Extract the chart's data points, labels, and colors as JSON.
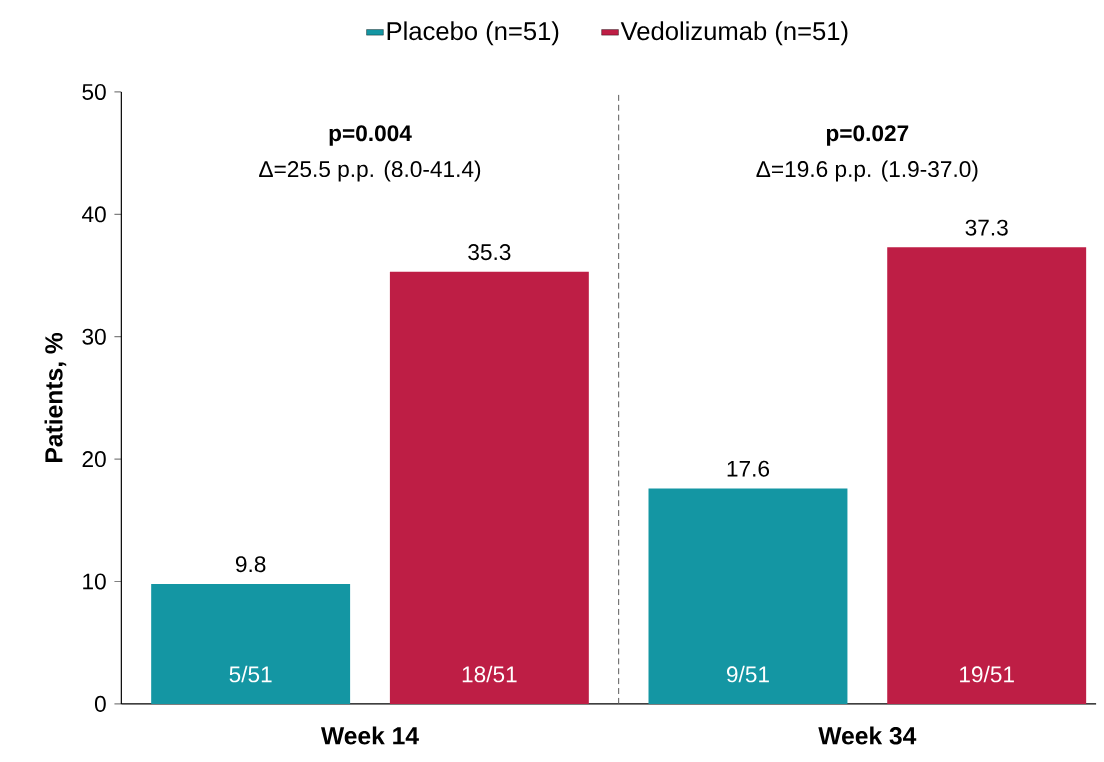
{
  "chart_data": {
    "type": "bar",
    "ylabel": "Patients, %",
    "categories": [
      "Week 14",
      "Week 34"
    ],
    "series": [
      {
        "name": "Placebo (n=51)",
        "color": "#1496a3",
        "values": [
          9.8,
          17.6
        ]
      },
      {
        "name": "Vedolizumab (n=51)",
        "color": "#be1e45",
        "values": [
          35.3,
          37.3
        ]
      }
    ],
    "ylim": [
      0,
      50
    ],
    "yticks": [
      0,
      10,
      20,
      30,
      40,
      50
    ],
    "data_labels": true,
    "legend": "top",
    "annotations": [
      "**p=0.004**",
      "Δ=25.5 p.p. (8.0-41.4)",
      "**p=0.027**",
      "Δ=19.6 p.p. (1.9-37.0)",
      "5/51",
      "18/51",
      "9/51",
      "19/51"
    ]
  }
}
